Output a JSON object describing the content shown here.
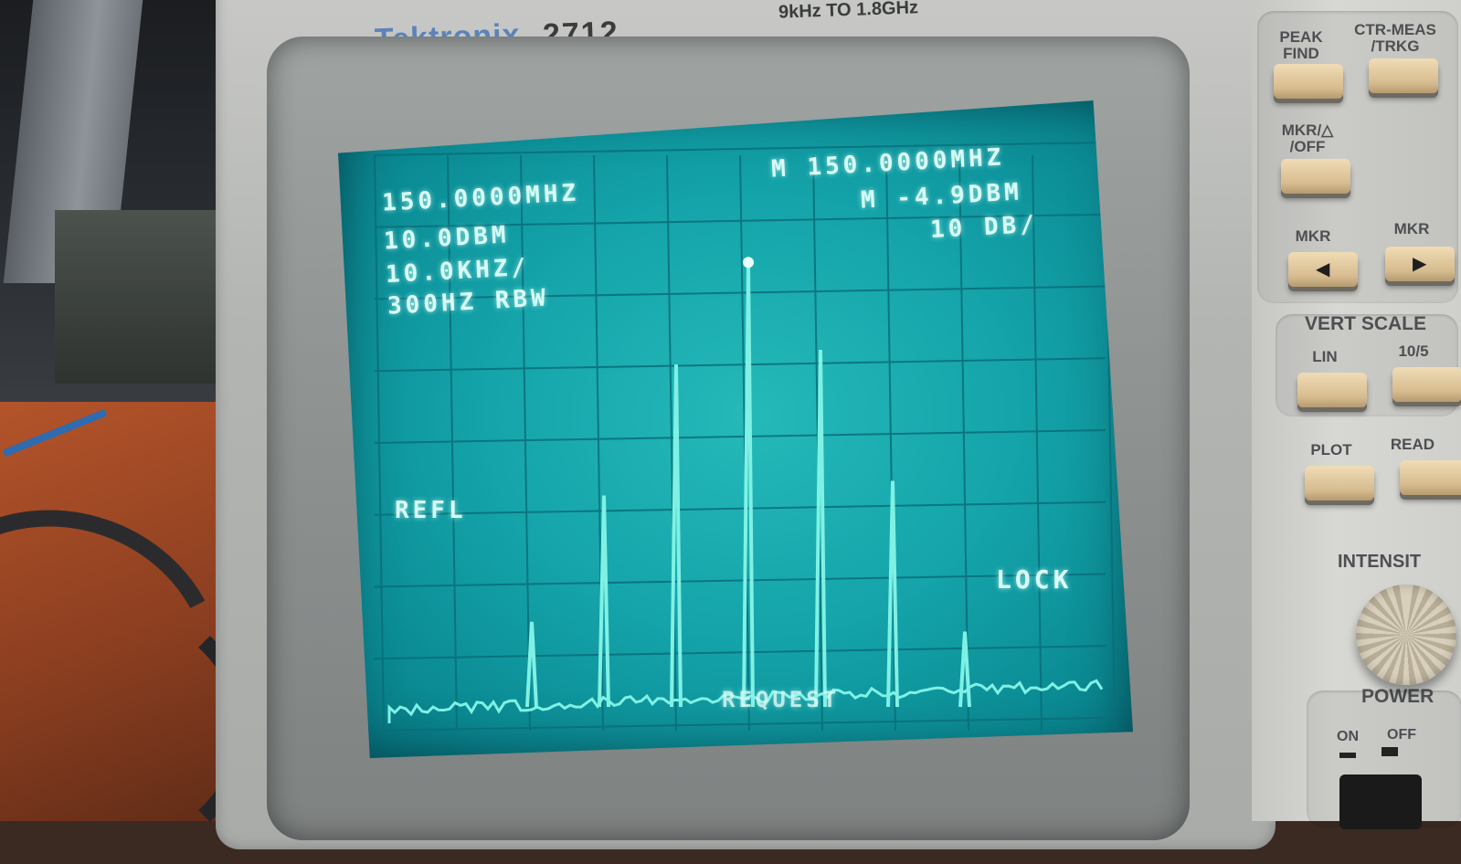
{
  "instrument": {
    "brand": "Tektronix",
    "model": "2712",
    "range_text": "9kHz TO 1.8GHz"
  },
  "readouts": {
    "center_freq": "150.0000MHZ",
    "ref_level": "10.0DBM",
    "span_div": "10.0KHZ/",
    "rbw": "300HZ RBW",
    "marker_freq": "M 150.0000MHZ",
    "marker_ampl": "M -4.9DBM",
    "vert_scale": "10 DB/",
    "refl": "REFL",
    "lock": "LOCK",
    "request": "REQUEST"
  },
  "panel": {
    "peak_find": "PEAK FIND",
    "ctr_meas": "CTR-MEAS /TRKG",
    "mkr_delta_off": "MKR/△ /OFF",
    "mkr_left": "MKR",
    "mkr_right": "MKR",
    "vert_scale": "VERT SCALE",
    "lin": "LIN",
    "ten_five": "10/5",
    "plot": "PLOT",
    "read": "READ",
    "intensity": "INTENSIT",
    "power": "POWER",
    "on": "ON",
    "off": "OFF"
  },
  "trace": {
    "type": "spectrum",
    "peaks_relative_height": [
      0.19,
      0.45,
      0.72,
      0.93,
      0.75,
      0.48,
      0.17
    ],
    "marker_peak_index": 3
  },
  "colors": {
    "phosphor": "#d8fbf6",
    "screen": "#14a4aa",
    "button": "#e3caa0"
  }
}
